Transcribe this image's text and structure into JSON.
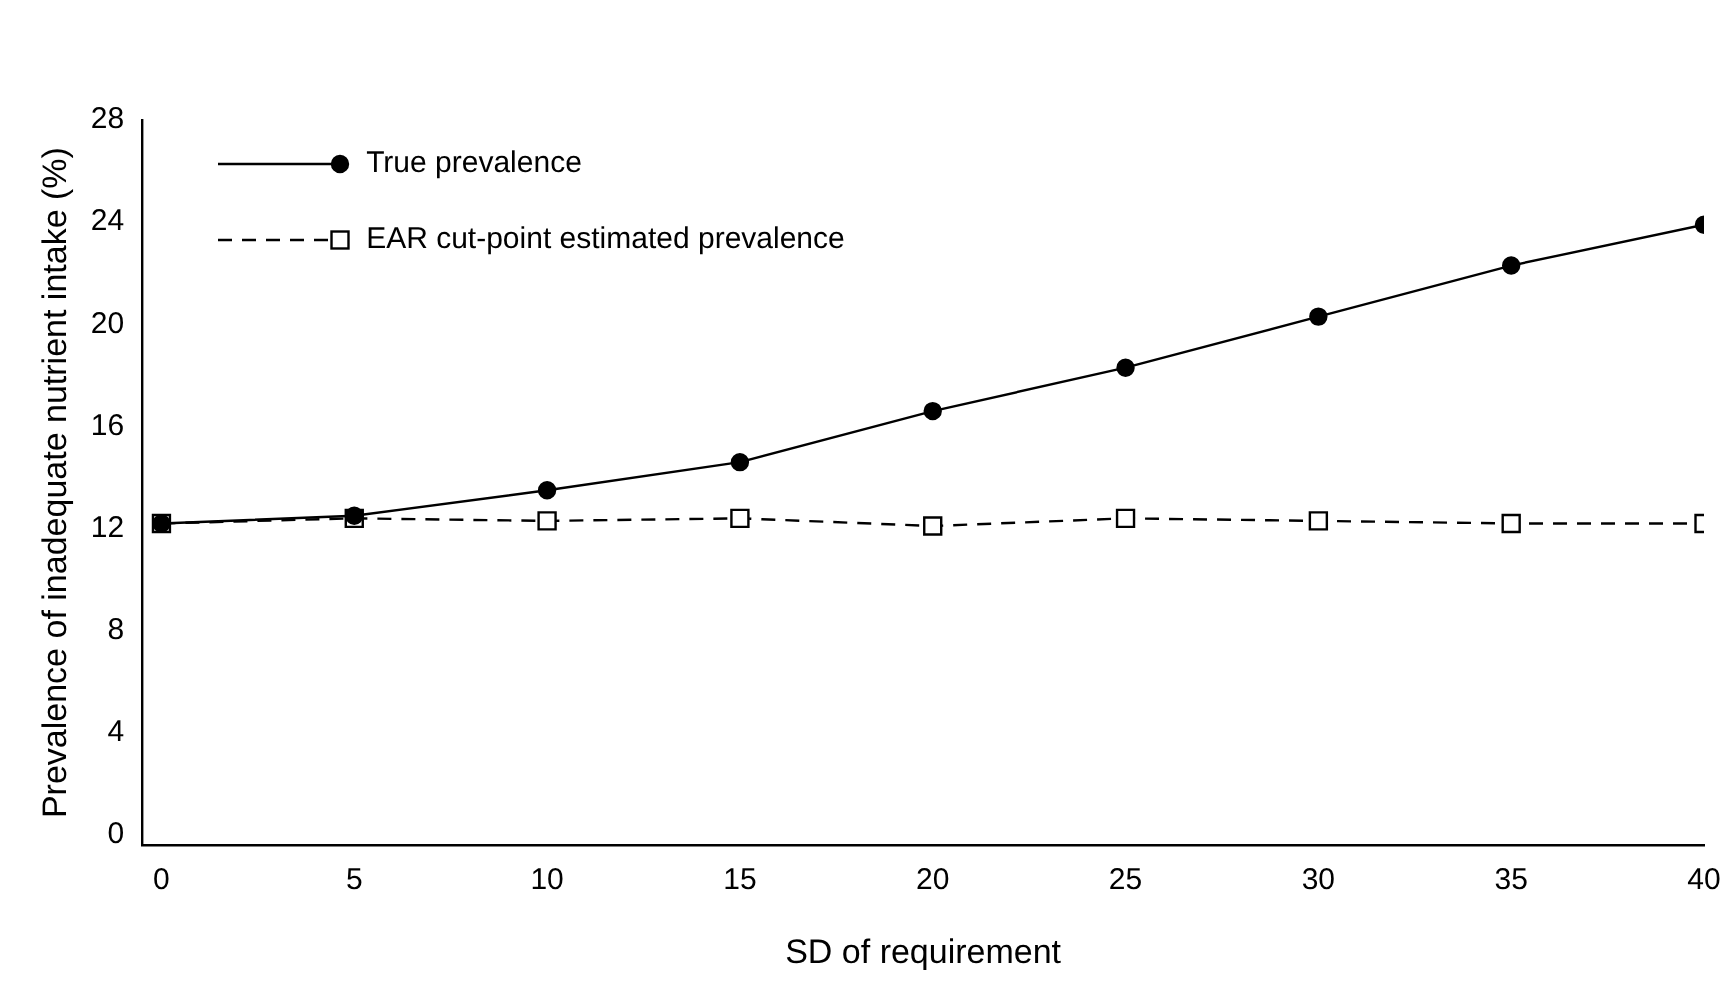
{
  "chart_data": {
    "type": "line",
    "xlabel": "SD of requirement",
    "ylabel": "Prevalence of inadequate nutrient intake (%)",
    "x": [
      0,
      5,
      10,
      15,
      20,
      25,
      30,
      35,
      40
    ],
    "series": [
      {
        "name": "True prevalence",
        "color": "#000000",
        "marker": "circle",
        "line_style": "solid",
        "values": [
          12.2,
          12.5,
          13.5,
          14.6,
          16.6,
          18.3,
          20.3,
          22.3,
          23.9
        ]
      },
      {
        "name": "EAR cut-point estimated prevalence",
        "color": "#000000",
        "marker": "square",
        "line_style": "dashed",
        "values": [
          12.2,
          12.4,
          12.3,
          12.4,
          12.1,
          12.4,
          12.3,
          12.2,
          12.2
        ]
      }
    ],
    "xlim": [
      -0.5,
      40
    ],
    "xticks": [
      0,
      5,
      10,
      15,
      20,
      25,
      30,
      35,
      40
    ],
    "ylim": [
      -0.4,
      28
    ],
    "yticks": [
      0,
      4,
      8,
      12,
      16,
      20,
      24,
      28
    ],
    "grid": false,
    "legend": "top left"
  }
}
